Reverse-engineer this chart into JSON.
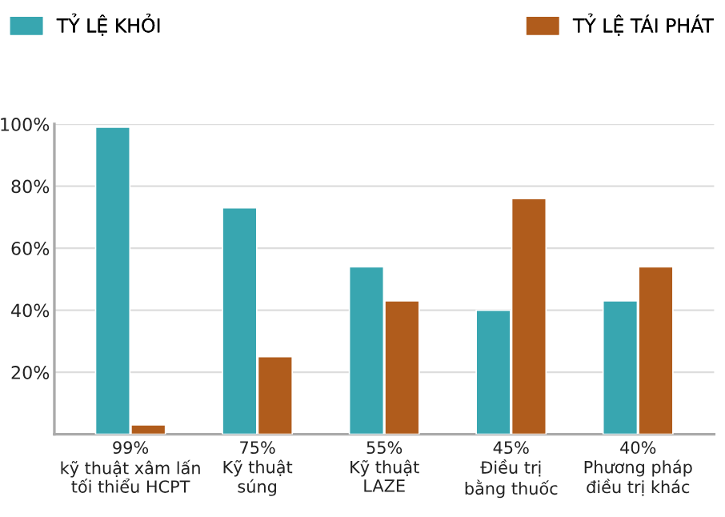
{
  "chart_data": {
    "type": "bar",
    "categories": [
      "99%\nkỹ thuật xâm lấn\ntối thiểu HCPT",
      "75%\nKỹ thuật\nsúng",
      "55%\nKỹ thuật\nLAZE",
      "45%\nĐiều trị\nbằng thuốc",
      "40%\nPhương pháp\nđiều trị khác"
    ],
    "series": [
      {
        "name": "TỶ LỆ KHỎI",
        "color": "#38a6b0",
        "values": [
          99,
          73,
          54,
          40,
          43
        ]
      },
      {
        "name": "TỶ LỆ TÁI PHÁT",
        "color": "#b05c1c",
        "values": [
          3,
          25,
          43,
          76,
          54
        ]
      }
    ],
    "ylim": [
      0,
      100
    ],
    "yticks": [
      {
        "value": 20,
        "label": "20%"
      },
      {
        "value": 40,
        "label": "40%"
      },
      {
        "value": 60,
        "label": "60%"
      },
      {
        "value": 80,
        "label": "80%"
      },
      {
        "value": 100,
        "label": "100%"
      }
    ],
    "grid": "y",
    "legend": "top"
  }
}
